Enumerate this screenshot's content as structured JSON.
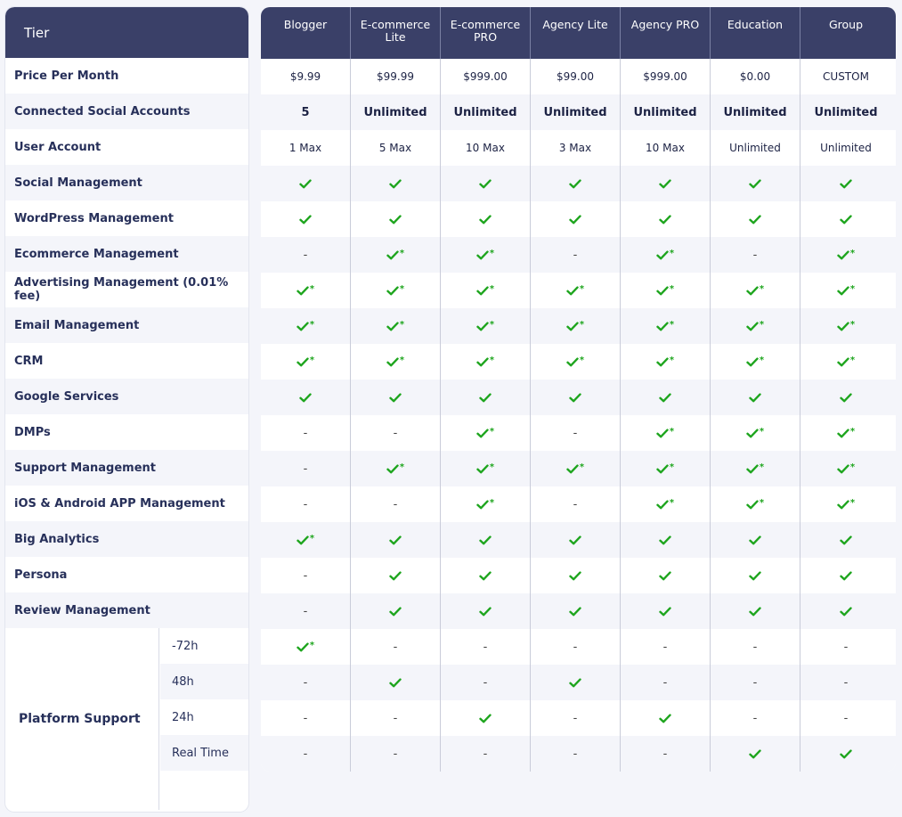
{
  "tier_label": "Tier",
  "columns": [
    "Blogger",
    "E-commerce\nLite",
    "E-commerce\nPRO",
    "Agency Lite",
    "Agency PRO",
    "Education",
    "Group"
  ],
  "rows": [
    {
      "label": "Price Per Month",
      "bold_values": false,
      "values": [
        "$9.99",
        "$99.99",
        "$999.00",
        "$99.00",
        "$999.00",
        "$0.00",
        "CUSTOM"
      ]
    },
    {
      "label": "Connected Social Accounts",
      "bold_values": true,
      "values": [
        "5",
        "Unlimited",
        "Unlimited",
        "Unlimited",
        "Unlimited",
        "Unlimited",
        "Unlimited"
      ]
    },
    {
      "label": "User Account",
      "bold_values": false,
      "values": [
        "1 Max",
        "5 Max",
        "10 Max",
        "3 Max",
        "10 Max",
        "Unlimited",
        "Unlimited"
      ]
    },
    {
      "label": "Social Management",
      "values": [
        "check",
        "check",
        "check",
        "check",
        "check",
        "check",
        "check"
      ]
    },
    {
      "label": "WordPress Management",
      "values": [
        "check",
        "check",
        "check",
        "check",
        "check",
        "check",
        "check"
      ]
    },
    {
      "label": "Ecommerce Management",
      "values": [
        "dash",
        "check*",
        "check*",
        "dash",
        "check*",
        "dash",
        "check*"
      ]
    },
    {
      "label": "Advertising Management (0.01% fee)",
      "values": [
        "check*",
        "check*",
        "check*",
        "check*",
        "check*",
        "check*",
        "check*"
      ]
    },
    {
      "label": "Email Management",
      "values": [
        "check*",
        "check*",
        "check*",
        "check*",
        "check*",
        "check*",
        "check*"
      ]
    },
    {
      "label": "CRM",
      "values": [
        "check*",
        "check*",
        "check*",
        "check*",
        "check*",
        "check*",
        "check*"
      ]
    },
    {
      "label": "Google Services",
      "values": [
        "check",
        "check",
        "check",
        "check",
        "check",
        "check",
        "check"
      ]
    },
    {
      "label": "DMPs",
      "values": [
        "dash",
        "dash",
        "check*",
        "dash",
        "check*",
        "check*",
        "check*"
      ]
    },
    {
      "label": "Support Management",
      "values": [
        "dash",
        "check*",
        "check*",
        "check*",
        "check*",
        "check*",
        "check*"
      ]
    },
    {
      "label": "iOS & Android APP Management",
      "values": [
        "dash",
        "dash",
        "check*",
        "dash",
        "check*",
        "check*",
        "check*"
      ]
    },
    {
      "label": "Big Analytics",
      "values": [
        "check*",
        "check",
        "check",
        "check",
        "check",
        "check",
        "check"
      ]
    },
    {
      "label": "Persona",
      "values": [
        "dash",
        "check",
        "check",
        "check",
        "check",
        "check",
        "check"
      ]
    },
    {
      "label": "Review Management",
      "values": [
        "dash",
        "check",
        "check",
        "check",
        "check",
        "check",
        "check"
      ]
    }
  ],
  "platform_support": {
    "label": "Platform Support",
    "rows": [
      {
        "label": "-72h",
        "values": [
          "check*",
          "dash",
          "dash",
          "dash",
          "dash",
          "dash",
          "dash"
        ]
      },
      {
        "label": "48h",
        "values": [
          "dash",
          "check",
          "dash",
          "check",
          "dash",
          "dash",
          "dash"
        ]
      },
      {
        "label": "24h",
        "values": [
          "dash",
          "dash",
          "check",
          "dash",
          "check",
          "dash",
          "dash"
        ]
      },
      {
        "label": "Real Time",
        "values": [
          "dash",
          "dash",
          "dash",
          "dash",
          "dash",
          "check",
          "check"
        ]
      }
    ]
  },
  "symbols": {
    "dash": "-",
    "star": "*"
  },
  "colors": {
    "header": "#3a4068",
    "check": "#1ea51e",
    "text": "#27305a"
  }
}
